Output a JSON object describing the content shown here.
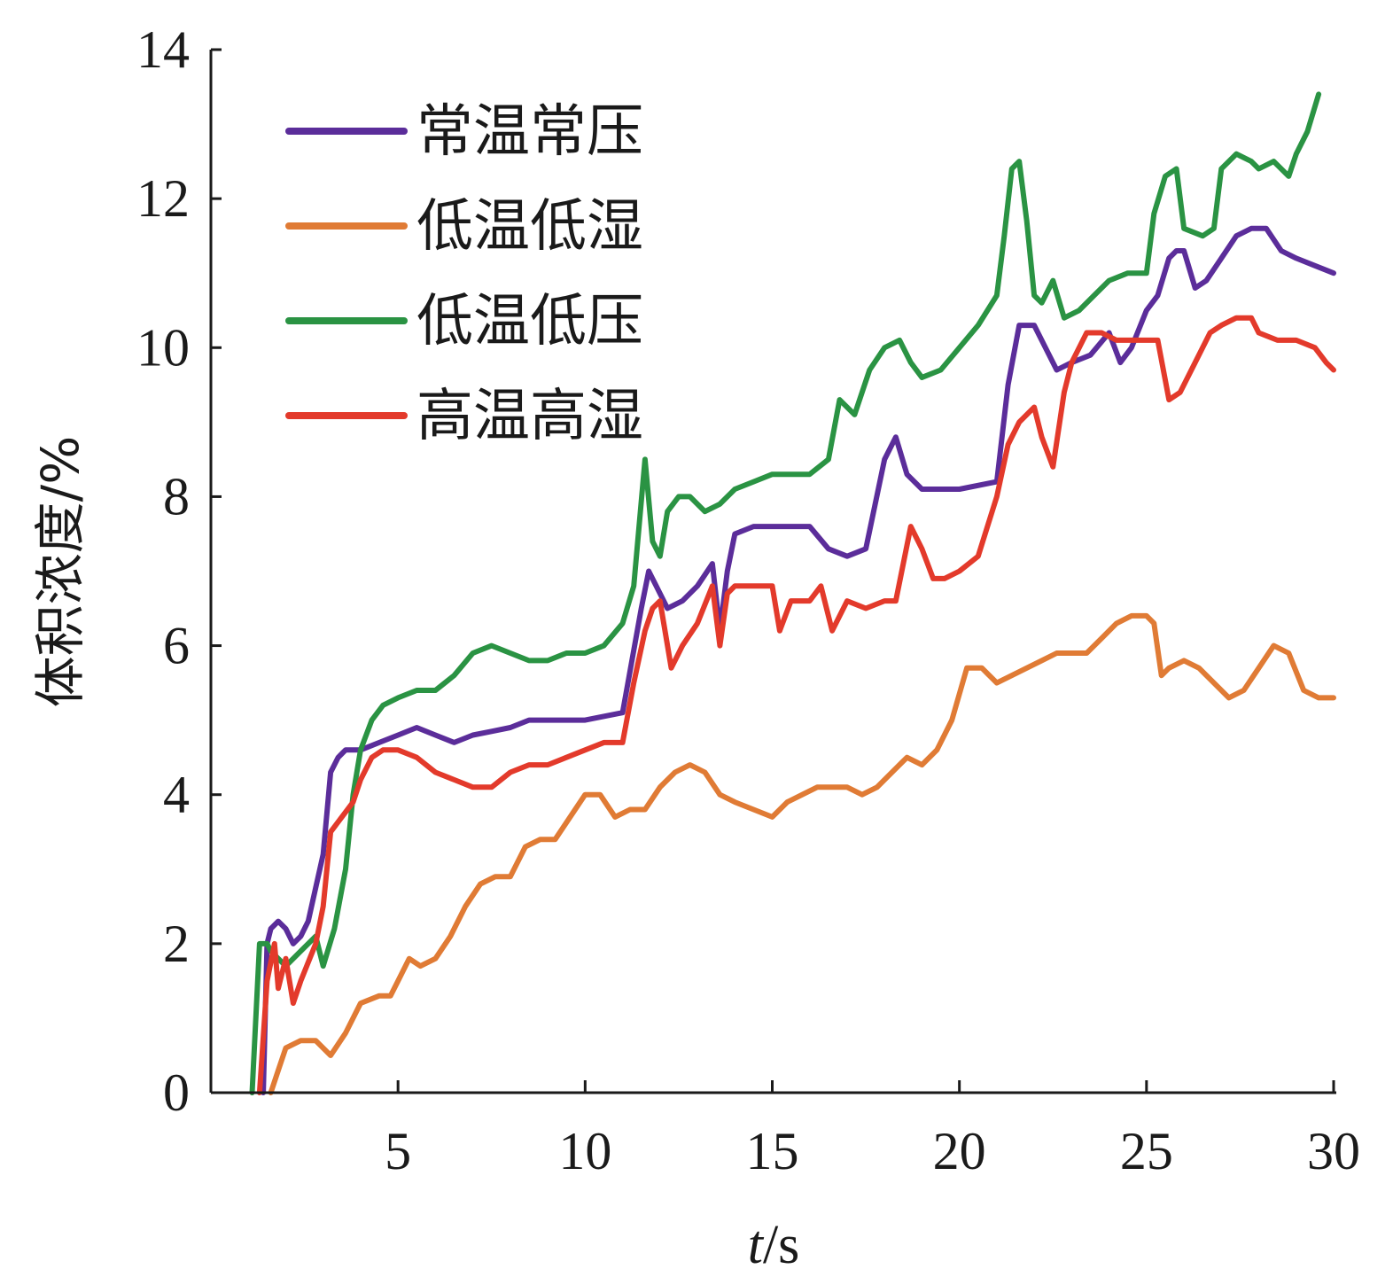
{
  "chart_data": {
    "type": "line",
    "title": "",
    "xlabel_italic": "t",
    "xlabel_rest": "/s",
    "ylabel": "体积浓度/%",
    "xlim": [
      0,
      30
    ],
    "ylim": [
      0,
      14
    ],
    "xticks": [
      5,
      10,
      15,
      20,
      25,
      30
    ],
    "yticks": [
      0,
      2,
      4,
      6,
      8,
      10,
      12,
      14
    ],
    "grid": false,
    "legend_position": "top-left",
    "series": [
      {
        "name": "常温常压",
        "color": "#5b2d9a",
        "x": [
          1.4,
          1.5,
          1.6,
          1.8,
          2.0,
          2.2,
          2.4,
          2.6,
          3.0,
          3.2,
          3.4,
          3.6,
          4.0,
          4.5,
          5.0,
          5.5,
          6.0,
          6.5,
          7.0,
          7.5,
          8.0,
          8.5,
          9.0,
          10.0,
          11.0,
          11.5,
          11.7,
          11.9,
          12.2,
          12.6,
          13.0,
          13.4,
          13.6,
          13.8,
          14.0,
          14.5,
          15.0,
          15.5,
          16.0,
          16.5,
          17.0,
          17.5,
          18.0,
          18.3,
          18.6,
          19.0,
          20.0,
          21.0,
          21.3,
          21.6,
          22.0,
          22.4,
          22.6,
          23.0,
          23.5,
          24.0,
          24.3,
          24.6,
          25.0,
          25.3,
          25.6,
          25.8,
          26.0,
          26.3,
          26.6,
          27.0,
          27.4,
          27.8,
          28.2,
          28.6,
          29.0,
          29.5,
          30.0
        ],
        "values": [
          0.0,
          2.0,
          2.2,
          2.3,
          2.2,
          2.0,
          2.1,
          2.3,
          3.2,
          4.3,
          4.5,
          4.6,
          4.6,
          4.7,
          4.8,
          4.9,
          4.8,
          4.7,
          4.8,
          4.85,
          4.9,
          5.0,
          5.0,
          5.0,
          5.1,
          6.5,
          7.0,
          6.8,
          6.5,
          6.6,
          6.8,
          7.1,
          6.2,
          7.0,
          7.5,
          7.6,
          7.6,
          7.6,
          7.6,
          7.3,
          7.2,
          7.3,
          8.5,
          8.8,
          8.3,
          8.1,
          8.1,
          8.2,
          9.5,
          10.3,
          10.3,
          9.9,
          9.7,
          9.8,
          9.9,
          10.2,
          9.8,
          10.0,
          10.5,
          10.7,
          11.2,
          11.3,
          11.3,
          10.8,
          10.9,
          11.2,
          11.5,
          11.6,
          11.6,
          11.3,
          11.2,
          11.1,
          11.0
        ]
      },
      {
        "name": "低温低湿",
        "color": "#e07b35",
        "x": [
          1.6,
          1.8,
          2.0,
          2.4,
          2.8,
          3.2,
          3.6,
          4.0,
          4.5,
          4.8,
          5.0,
          5.3,
          5.6,
          6.0,
          6.4,
          6.8,
          7.2,
          7.6,
          8.0,
          8.4,
          8.8,
          9.2,
          9.6,
          10.0,
          10.4,
          10.8,
          11.2,
          11.6,
          12.0,
          12.4,
          12.8,
          13.2,
          13.6,
          14.0,
          14.5,
          15.0,
          15.4,
          15.8,
          16.2,
          16.6,
          17.0,
          17.4,
          17.8,
          18.2,
          18.6,
          19.0,
          19.4,
          19.8,
          20.2,
          20.6,
          21.0,
          21.4,
          21.8,
          22.2,
          22.6,
          23.0,
          23.4,
          23.8,
          24.2,
          24.6,
          25.0,
          25.2,
          25.4,
          25.6,
          26.0,
          26.4,
          26.8,
          27.2,
          27.6,
          28.0,
          28.4,
          28.8,
          29.2,
          29.6,
          30.0
        ],
        "values": [
          0.0,
          0.3,
          0.6,
          0.7,
          0.7,
          0.5,
          0.8,
          1.2,
          1.3,
          1.3,
          1.5,
          1.8,
          1.7,
          1.8,
          2.1,
          2.5,
          2.8,
          2.9,
          2.9,
          3.3,
          3.4,
          3.4,
          3.7,
          4.0,
          4.0,
          3.7,
          3.8,
          3.8,
          4.1,
          4.3,
          4.4,
          4.3,
          4.0,
          3.9,
          3.8,
          3.7,
          3.9,
          4.0,
          4.1,
          4.1,
          4.1,
          4.0,
          4.1,
          4.3,
          4.5,
          4.4,
          4.6,
          5.0,
          5.7,
          5.7,
          5.5,
          5.6,
          5.7,
          5.8,
          5.9,
          5.9,
          5.9,
          6.1,
          6.3,
          6.4,
          6.4,
          6.3,
          5.6,
          5.7,
          5.8,
          5.7,
          5.5,
          5.3,
          5.4,
          5.7,
          6.0,
          5.9,
          5.4,
          5.3,
          5.3
        ]
      },
      {
        "name": "低温低压",
        "color": "#2a9343",
        "x": [
          1.1,
          1.3,
          1.5,
          1.6,
          1.8,
          2.0,
          2.4,
          2.8,
          3.0,
          3.3,
          3.6,
          3.8,
          4.0,
          4.3,
          4.6,
          5.0,
          5.5,
          6.0,
          6.5,
          7.0,
          7.5,
          8.0,
          8.5,
          9.0,
          9.5,
          10.0,
          10.5,
          11.0,
          11.3,
          11.6,
          11.8,
          12.0,
          12.2,
          12.5,
          12.8,
          13.2,
          13.6,
          14.0,
          14.5,
          15.0,
          15.5,
          16.0,
          16.5,
          16.8,
          17.2,
          17.6,
          18.0,
          18.4,
          18.7,
          19.0,
          19.5,
          20.0,
          20.5,
          21.0,
          21.2,
          21.4,
          21.6,
          21.8,
          22.0,
          22.2,
          22.5,
          22.8,
          23.2,
          23.6,
          24.0,
          24.5,
          25.0,
          25.2,
          25.5,
          25.8,
          26.0,
          26.5,
          26.8,
          27.0,
          27.4,
          27.8,
          28.0,
          28.4,
          28.8,
          29.0,
          29.3,
          29.6
        ],
        "values": [
          0.0,
          2.0,
          2.0,
          1.9,
          1.8,
          1.7,
          1.9,
          2.1,
          1.7,
          2.2,
          3.0,
          4.0,
          4.6,
          5.0,
          5.2,
          5.3,
          5.4,
          5.4,
          5.6,
          5.9,
          6.0,
          5.9,
          5.8,
          5.8,
          5.9,
          5.9,
          6.0,
          6.3,
          6.8,
          8.5,
          7.4,
          7.2,
          7.8,
          8.0,
          8.0,
          7.8,
          7.9,
          8.1,
          8.2,
          8.3,
          8.3,
          8.3,
          8.5,
          9.3,
          9.1,
          9.7,
          10.0,
          10.1,
          9.8,
          9.6,
          9.7,
          10.0,
          10.3,
          10.7,
          11.5,
          12.4,
          12.5,
          11.7,
          10.7,
          10.6,
          10.9,
          10.4,
          10.5,
          10.7,
          10.9,
          11.0,
          11.0,
          11.8,
          12.3,
          12.4,
          11.6,
          11.5,
          11.6,
          12.4,
          12.6,
          12.5,
          12.4,
          12.5,
          12.3,
          12.6,
          12.9,
          13.4
        ]
      },
      {
        "name": "高温高湿",
        "color": "#e33a2b",
        "x": [
          1.3,
          1.5,
          1.7,
          1.8,
          1.9,
          2.0,
          2.2,
          2.4,
          2.8,
          3.0,
          3.2,
          3.5,
          3.8,
          4.0,
          4.3,
          4.6,
          5.0,
          5.5,
          6.0,
          6.5,
          7.0,
          7.5,
          8.0,
          8.5,
          9.0,
          9.5,
          10.0,
          10.5,
          11.0,
          11.3,
          11.6,
          11.8,
          12.0,
          12.3,
          12.6,
          13.0,
          13.4,
          13.6,
          13.8,
          14.0,
          14.5,
          15.0,
          15.2,
          15.5,
          16.0,
          16.3,
          16.6,
          17.0,
          17.5,
          18.0,
          18.3,
          18.7,
          19.0,
          19.3,
          19.6,
          20.0,
          20.5,
          21.0,
          21.3,
          21.6,
          22.0,
          22.2,
          22.5,
          22.8,
          23.0,
          23.4,
          23.8,
          24.2,
          24.6,
          25.0,
          25.3,
          25.6,
          25.9,
          26.3,
          26.7,
          27.0,
          27.4,
          27.8,
          28.0,
          28.5,
          29.0,
          29.5,
          29.8,
          30.0
        ],
        "values": [
          0.0,
          1.5,
          2.0,
          1.4,
          1.6,
          1.8,
          1.2,
          1.5,
          2.0,
          2.5,
          3.5,
          3.7,
          3.9,
          4.2,
          4.5,
          4.6,
          4.6,
          4.5,
          4.3,
          4.2,
          4.1,
          4.1,
          4.3,
          4.4,
          4.4,
          4.5,
          4.6,
          4.7,
          4.7,
          5.5,
          6.2,
          6.5,
          6.6,
          5.7,
          6.0,
          6.3,
          6.8,
          6.0,
          6.7,
          6.8,
          6.8,
          6.8,
          6.2,
          6.6,
          6.6,
          6.8,
          6.2,
          6.6,
          6.5,
          6.6,
          6.6,
          7.6,
          7.3,
          6.9,
          6.9,
          7.0,
          7.2,
          8.0,
          8.7,
          9.0,
          9.2,
          8.8,
          8.4,
          9.4,
          9.8,
          10.2,
          10.2,
          10.1,
          10.1,
          10.1,
          10.1,
          9.3,
          9.4,
          9.8,
          10.2,
          10.3,
          10.4,
          10.4,
          10.2,
          10.1,
          10.1,
          10.0,
          9.8,
          9.7
        ]
      }
    ]
  }
}
